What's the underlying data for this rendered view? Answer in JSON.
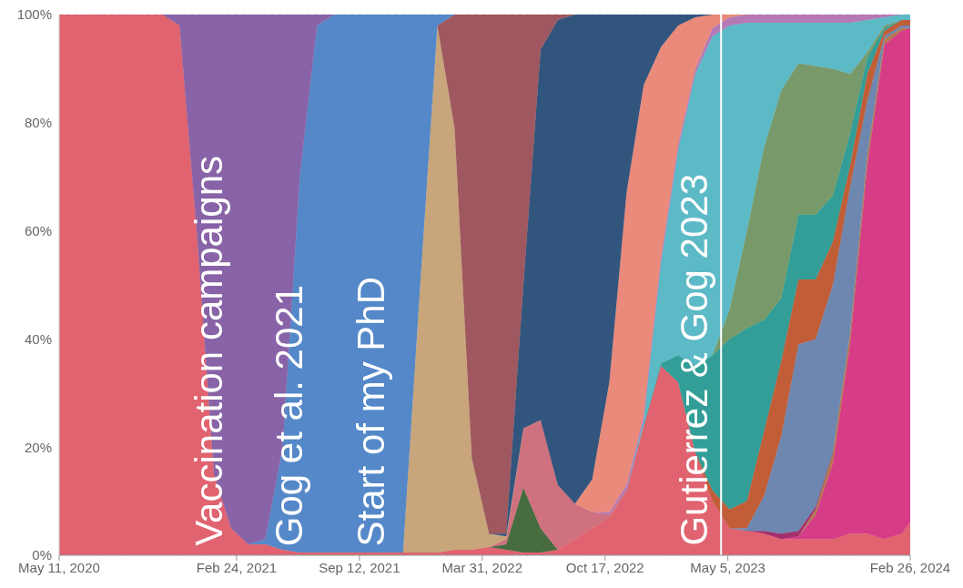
{
  "chart_data": {
    "type": "area",
    "stacked": true,
    "grid": "y",
    "x": [
      "2020-05-11",
      "2020-06-08",
      "2020-07-06",
      "2020-08-03",
      "2020-08-31",
      "2020-09-28",
      "2020-10-26",
      "2020-11-23",
      "2020-12-21",
      "2021-01-18",
      "2021-02-15",
      "2021-03-15",
      "2021-04-12",
      "2021-05-10",
      "2021-06-07",
      "2021-07-05",
      "2021-08-02",
      "2021-08-30",
      "2021-09-27",
      "2021-10-25",
      "2021-11-22",
      "2021-12-20",
      "2022-01-17",
      "2022-02-14",
      "2022-03-14",
      "2022-04-11",
      "2022-05-09",
      "2022-06-06",
      "2022-07-04",
      "2022-08-01",
      "2022-08-29",
      "2022-09-26",
      "2022-10-24",
      "2022-11-21",
      "2022-12-19",
      "2023-01-16",
      "2023-02-13",
      "2023-03-13",
      "2023-04-10",
      "2023-05-08",
      "2023-06-05",
      "2023-07-03",
      "2023-07-31",
      "2023-08-28",
      "2023-09-25",
      "2023-10-23",
      "2023-11-20",
      "2023-12-18",
      "2024-01-15",
      "2024-02-12",
      "2024-02-26"
    ],
    "series": [
      {
        "color": "#e0636f",
        "values": [
          100,
          100,
          100,
          100,
          100,
          100,
          100,
          98,
          60,
          15,
          5,
          2,
          2,
          1,
          0.5,
          0.5,
          0.5,
          0.5,
          0.5,
          0.5,
          0.5,
          0.5,
          0.5,
          1,
          1,
          1.5,
          1,
          0.5,
          0.5,
          1,
          3,
          5,
          7,
          12,
          24,
          35,
          32,
          19,
          10,
          5,
          4.5,
          4,
          3,
          3,
          3,
          3,
          4,
          4,
          3,
          4,
          6
        ]
      },
      {
        "color": "#d73c87",
        "values": [
          null,
          null,
          null,
          null,
          null,
          null,
          null,
          null,
          null,
          null,
          null,
          null,
          null,
          null,
          null,
          null,
          null,
          null,
          null,
          null,
          null,
          null,
          null,
          null,
          null,
          null,
          null,
          null,
          null,
          null,
          null,
          null,
          null,
          null,
          null,
          null,
          null,
          null,
          null,
          null,
          null,
          null,
          0,
          0.5,
          4.5,
          14,
          35,
          68,
          91.5,
          93,
          91.5
        ]
      },
      {
        "color": "#b27952",
        "values": [
          null,
          null,
          null,
          null,
          null,
          null,
          null,
          null,
          null,
          null,
          null,
          null,
          null,
          null,
          null,
          null,
          null,
          null,
          null,
          null,
          null,
          null,
          null,
          null,
          null,
          null,
          null,
          null,
          null,
          null,
          null,
          null,
          null,
          null,
          null,
          null,
          null,
          null,
          null,
          null,
          null,
          null,
          null,
          0,
          1,
          2,
          2,
          2,
          1,
          0.5,
          0
        ]
      },
      {
        "color": "#a3306d",
        "values": [
          null,
          null,
          null,
          null,
          null,
          null,
          null,
          null,
          null,
          null,
          null,
          null,
          null,
          null,
          null,
          null,
          null,
          null,
          null,
          null,
          null,
          null,
          null,
          null,
          null,
          null,
          null,
          null,
          null,
          null,
          null,
          null,
          null,
          null,
          null,
          null,
          null,
          null,
          null,
          null,
          0,
          0.5,
          1,
          1,
          0.5,
          0,
          null,
          null,
          null,
          null,
          null
        ]
      },
      {
        "color": "#6d87b0",
        "values": [
          null,
          null,
          null,
          null,
          null,
          null,
          null,
          null,
          null,
          null,
          null,
          null,
          null,
          null,
          null,
          null,
          null,
          null,
          null,
          null,
          null,
          null,
          null,
          null,
          null,
          null,
          null,
          null,
          null,
          null,
          null,
          null,
          null,
          null,
          null,
          null,
          null,
          null,
          null,
          0,
          0.5,
          6.5,
          18,
          34.5,
          31,
          31,
          27,
          10,
          0.5,
          0.5,
          0.5
        ]
      },
      {
        "color": "#c15d37",
        "values": [
          null,
          null,
          null,
          null,
          null,
          null,
          null,
          null,
          null,
          null,
          null,
          null,
          null,
          null,
          null,
          null,
          null,
          null,
          null,
          null,
          null,
          null,
          null,
          null,
          null,
          null,
          null,
          null,
          null,
          null,
          null,
          null,
          null,
          null,
          null,
          null,
          null,
          0,
          2,
          3.5,
          5,
          12,
          14,
          12,
          11,
          8,
          4,
          5,
          1,
          1,
          1
        ]
      },
      {
        "color": "#329e97",
        "values": [
          null,
          null,
          null,
          null,
          null,
          null,
          null,
          null,
          null,
          null,
          null,
          null,
          null,
          null,
          null,
          null,
          null,
          null,
          null,
          null,
          null,
          null,
          null,
          null,
          null,
          null,
          null,
          null,
          null,
          null,
          null,
          null,
          null,
          null,
          0,
          0.5,
          5,
          16,
          25,
          31.5,
          32,
          20.5,
          11.5,
          12,
          12,
          8.5,
          6,
          3,
          0.5,
          0,
          null
        ]
      },
      {
        "color": "#789a6a",
        "values": [
          null,
          null,
          null,
          null,
          null,
          null,
          null,
          null,
          null,
          null,
          null,
          null,
          null,
          null,
          null,
          null,
          null,
          null,
          null,
          null,
          null,
          null,
          null,
          null,
          null,
          null,
          null,
          null,
          null,
          null,
          null,
          null,
          null,
          null,
          null,
          null,
          null,
          null,
          0,
          5.5,
          18,
          32,
          38.5,
          28,
          27.5,
          23.5,
          11,
          1,
          0.5,
          0,
          null
        ]
      },
      {
        "color": "#5cb9c6",
        "values": [
          null,
          null,
          null,
          null,
          null,
          null,
          null,
          null,
          null,
          null,
          null,
          null,
          null,
          null,
          null,
          null,
          null,
          null,
          null,
          null,
          null,
          null,
          null,
          null,
          null,
          null,
          null,
          null,
          null,
          null,
          null,
          null,
          null,
          0,
          1,
          18.5,
          38,
          54,
          59,
          52.5,
          38.5,
          23,
          12.5,
          7.5,
          8,
          8.5,
          9.5,
          6,
          1.5,
          1,
          1
        ]
      },
      {
        "color": "#476c40",
        "values": [
          null,
          null,
          null,
          null,
          null,
          null,
          null,
          null,
          null,
          null,
          null,
          null,
          null,
          null,
          null,
          null,
          null,
          null,
          null,
          null,
          null,
          null,
          null,
          null,
          null,
          0,
          1,
          12,
          4.5,
          0,
          null,
          null,
          null,
          null,
          null,
          null,
          null,
          null,
          null,
          null,
          null,
          null,
          null,
          null,
          null,
          null,
          null,
          null,
          null,
          null,
          null
        ]
      },
      {
        "color": "#cf717f",
        "values": [
          null,
          null,
          null,
          null,
          null,
          null,
          null,
          null,
          null,
          null,
          null,
          null,
          null,
          null,
          null,
          null,
          null,
          null,
          null,
          null,
          null,
          null,
          null,
          null,
          null,
          0,
          1,
          11,
          20,
          12,
          6.5,
          3,
          0.5,
          0,
          null,
          null,
          null,
          null,
          null,
          null,
          null,
          null,
          null,
          null,
          null,
          null,
          null,
          null,
          null,
          null,
          null
        ]
      },
      {
        "color": "#b57ab5",
        "values": [
          null,
          null,
          null,
          null,
          null,
          null,
          null,
          null,
          null,
          null,
          null,
          null,
          null,
          null,
          null,
          null,
          null,
          null,
          null,
          null,
          null,
          null,
          null,
          null,
          null,
          null,
          null,
          null,
          null,
          null,
          null,
          0,
          0.5,
          1,
          1,
          1,
          1,
          1,
          1.5,
          1.5,
          1.5,
          1.5,
          1.5,
          1.5,
          1.5,
          1.5,
          1.5,
          1,
          0.5,
          0,
          null
        ]
      },
      {
        "color": "#ea8a7a",
        "values": [
          null,
          null,
          null,
          null,
          null,
          null,
          null,
          null,
          null,
          null,
          null,
          null,
          null,
          null,
          null,
          null,
          null,
          null,
          null,
          null,
          null,
          null,
          null,
          null,
          null,
          null,
          null,
          null,
          null,
          null,
          0,
          6,
          24,
          54,
          61,
          39,
          22,
          9.5,
          2.5,
          0.5,
          0,
          null,
          null,
          null,
          null,
          null,
          null,
          null,
          null,
          null,
          null
        ]
      },
      {
        "color": "#c8a57b",
        "values": [
          null,
          null,
          null,
          null,
          null,
          null,
          null,
          null,
          null,
          null,
          null,
          null,
          null,
          null,
          null,
          null,
          null,
          null,
          null,
          null,
          0,
          49.5,
          97.5,
          78,
          17,
          2.5,
          0.5,
          0,
          null,
          null,
          null,
          null,
          null,
          null,
          null,
          null,
          null,
          null,
          null,
          null,
          null,
          null,
          null,
          null,
          null,
          null,
          null,
          null,
          null,
          null,
          null
        ]
      },
      {
        "color": "#32557d",
        "values": [
          null,
          null,
          null,
          null,
          null,
          null,
          null,
          null,
          null,
          null,
          null,
          null,
          null,
          null,
          null,
          null,
          null,
          null,
          null,
          null,
          null,
          null,
          null,
          null,
          null,
          0,
          0.5,
          26.5,
          68.5,
          86,
          90.5,
          86,
          68,
          33,
          13,
          6,
          2,
          0.5,
          0,
          null,
          null,
          null,
          null,
          null,
          null,
          null,
          null,
          null,
          null,
          null,
          null
        ]
      },
      {
        "color": "#9f5860",
        "values": [
          null,
          null,
          null,
          null,
          null,
          null,
          null,
          null,
          null,
          null,
          null,
          null,
          null,
          null,
          null,
          null,
          null,
          null,
          null,
          null,
          null,
          null,
          0,
          21,
          82,
          96,
          96,
          50,
          6.5,
          1,
          0,
          null,
          null,
          null,
          null,
          null,
          null,
          null,
          null,
          null,
          null,
          null,
          null,
          null,
          null,
          null,
          null,
          null,
          null,
          null,
          null
        ]
      },
      {
        "color": "#5488c8",
        "values": [
          null,
          null,
          null,
          null,
          null,
          null,
          null,
          null,
          null,
          null,
          null,
          0,
          1,
          19,
          69.5,
          97.5,
          99.5,
          99.5,
          99.5,
          99.5,
          99.5,
          50,
          2,
          0,
          null,
          null,
          null,
          null,
          null,
          null,
          null,
          null,
          null,
          null,
          null,
          null,
          null,
          null,
          null,
          null,
          null,
          null,
          null,
          null,
          null,
          null,
          null,
          null,
          null,
          null,
          null
        ]
      },
      {
        "color": "#8863a7",
        "values": [
          null,
          null,
          null,
          null,
          null,
          null,
          0,
          2,
          40,
          85,
          95,
          98,
          97,
          80,
          30,
          2,
          0,
          null,
          null,
          null,
          null,
          null,
          null,
          null,
          null,
          null,
          null,
          null,
          null,
          null,
          null,
          null,
          null,
          null,
          null,
          null,
          null,
          null,
          null,
          null,
          null,
          null,
          null,
          null,
          null,
          null,
          null,
          null,
          null,
          null,
          null
        ]
      }
    ],
    "xlim": [
      "2020-05-11",
      "2024-02-26"
    ],
    "xticks": [
      {
        "value": "2020-05-11",
        "label": "May 11, 2020"
      },
      {
        "value": "2021-02-24",
        "label": "Feb 24, 2021"
      },
      {
        "value": "2021-09-12",
        "label": "Sep 12, 2021"
      },
      {
        "value": "2022-03-31",
        "label": "Mar 31, 2022"
      },
      {
        "value": "2022-10-17",
        "label": "Oct 17, 2022"
      },
      {
        "value": "2023-05-05",
        "label": "May 5, 2023"
      },
      {
        "value": "2024-02-26",
        "label": "Feb 26, 2024"
      }
    ],
    "ylim": [
      0,
      100
    ],
    "yticks": [
      {
        "value": 0,
        "label": "0%"
      },
      {
        "value": 20,
        "label": "20%"
      },
      {
        "value": 40,
        "label": "40%"
      },
      {
        "value": 60,
        "label": "60%"
      },
      {
        "value": 80,
        "label": "80%"
      },
      {
        "value": 100,
        "label": "100%"
      }
    ],
    "ref_lines": [
      {
        "axis": "x",
        "value": "2023-04-24",
        "color": "#ffffff"
      }
    ],
    "annotations": [
      "Vaccination campaigns",
      "Gog et al. 2021",
      "Start of my PhD",
      "Gutierrez & Gog 2023"
    ]
  }
}
